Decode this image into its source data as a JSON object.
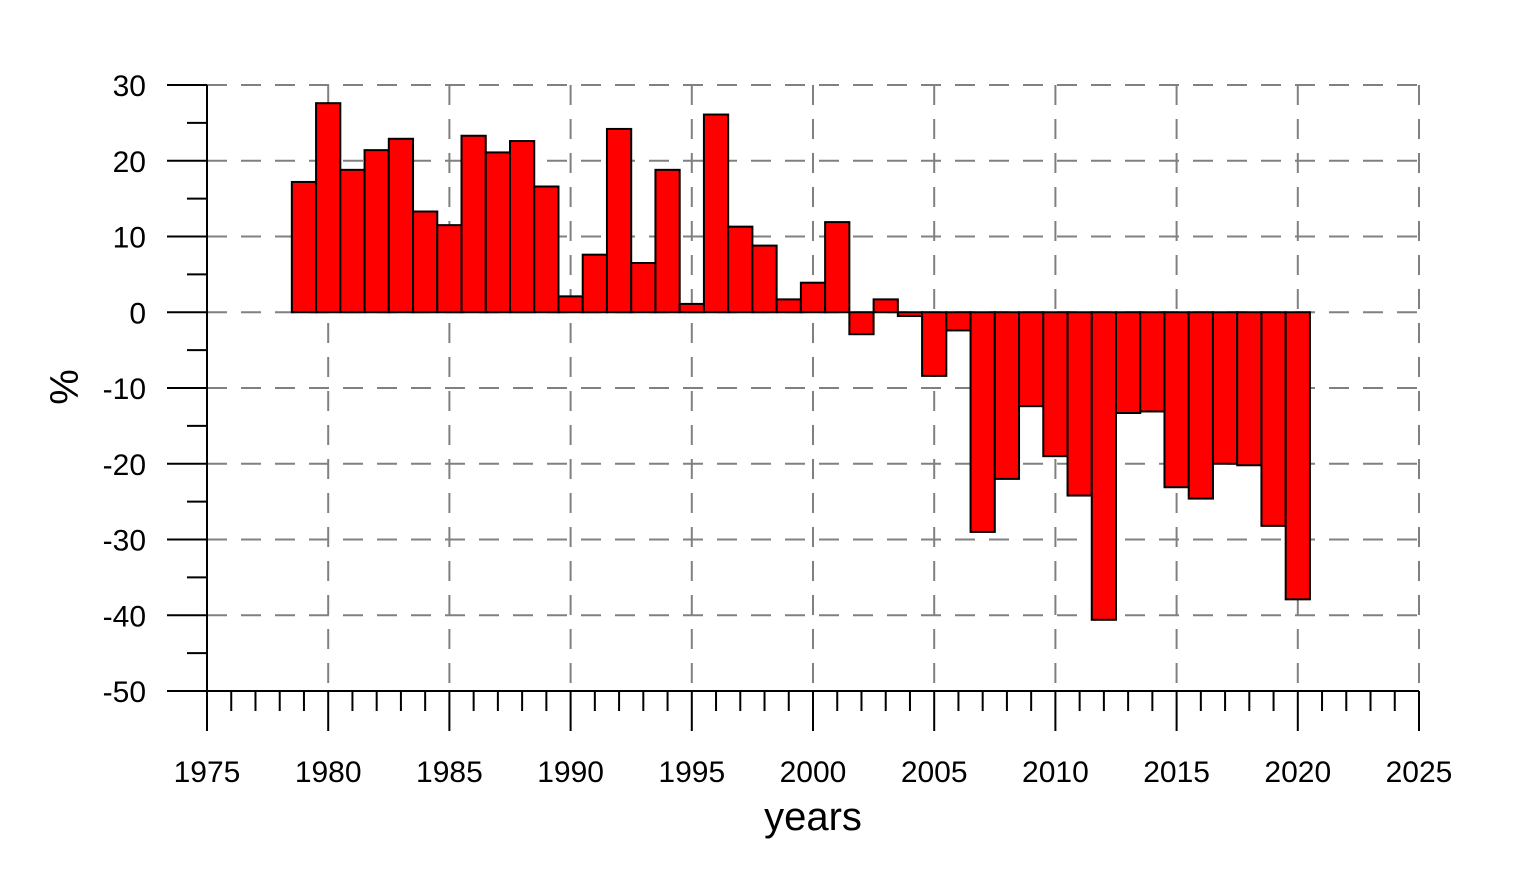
{
  "chart_data": {
    "type": "bar",
    "xlabel": "years",
    "ylabel": "%",
    "xlim": [
      1975,
      2025
    ],
    "ylim": [
      -50,
      30
    ],
    "x_ticks": [
      1975,
      1980,
      1985,
      1990,
      1995,
      2000,
      2005,
      2010,
      2015,
      2020,
      2025
    ],
    "y_ticks": [
      30,
      20,
      10,
      0,
      -10,
      -20,
      -30,
      -40,
      -50
    ],
    "grid": true,
    "bar_color": "#ff0000",
    "x": [
      1979,
      1980,
      1981,
      1982,
      1983,
      1984,
      1985,
      1986,
      1987,
      1988,
      1989,
      1990,
      1991,
      1992,
      1993,
      1994,
      1995,
      1996,
      1997,
      1998,
      1999,
      2000,
      2001,
      2002,
      2003,
      2004,
      2005,
      2006,
      2007,
      2008,
      2009,
      2010,
      2011,
      2012,
      2013,
      2014,
      2015,
      2016,
      2017,
      2018,
      2019,
      2020
    ],
    "values": [
      17.2,
      27.6,
      18.8,
      21.4,
      22.9,
      13.3,
      11.5,
      23.3,
      21.1,
      22.6,
      16.6,
      2.1,
      7.6,
      24.2,
      6.5,
      18.8,
      1.1,
      26.1,
      11.3,
      8.8,
      1.7,
      3.9,
      11.9,
      -2.9,
      1.7,
      -0.5,
      -8.4,
      -2.4,
      -29.0,
      -22.0,
      -12.4,
      -19.0,
      -24.2,
      -40.6,
      -13.3,
      -13.1,
      -23.1,
      -24.6,
      -20.0,
      -20.2,
      -28.2,
      -37.9
    ]
  }
}
